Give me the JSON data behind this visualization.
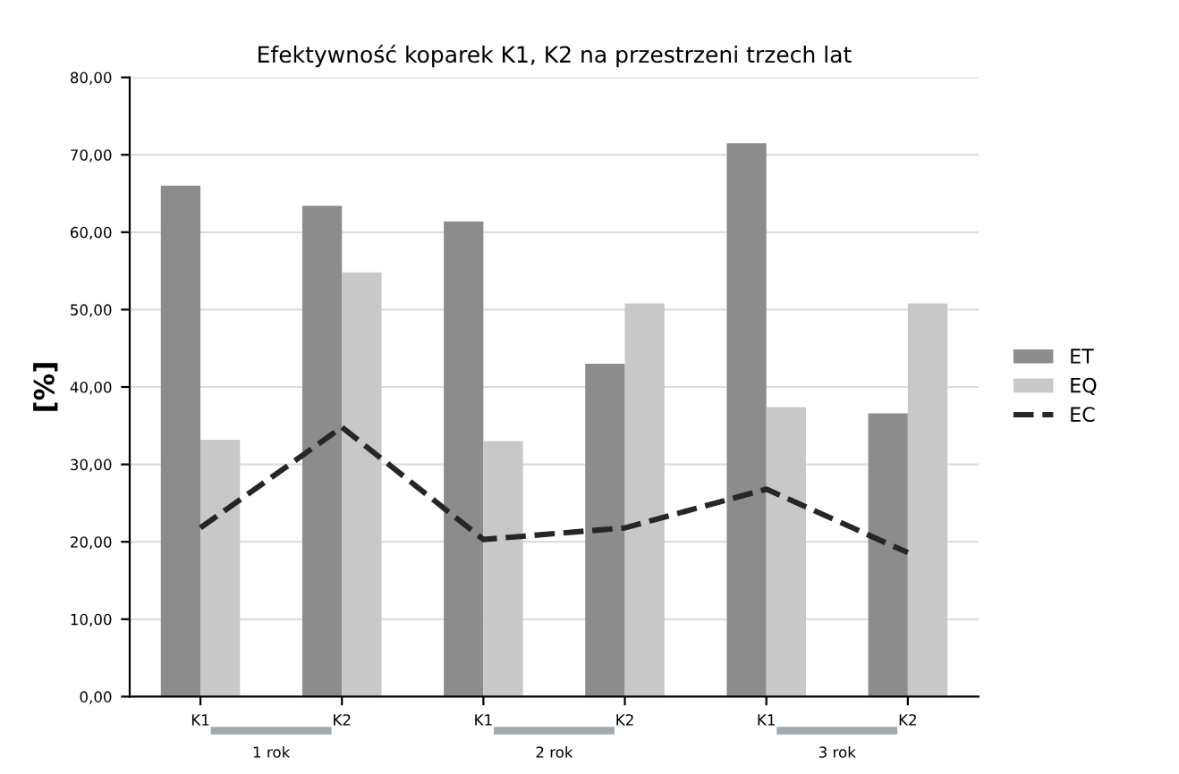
{
  "chart_data": {
    "type": "bar",
    "title": "Efektywność koparek K1, K2 na przestrzeni trzech lat",
    "ylabel": "[%]",
    "categories": [
      "K1",
      "K2",
      "K1",
      "K2",
      "K1",
      "K2"
    ],
    "series": [
      {
        "name": "ET",
        "color": "#8c8c8c",
        "values": [
          66.0,
          63.4,
          61.4,
          43.0,
          71.5,
          36.6
        ]
      },
      {
        "name": "EQ",
        "color": "#c8c8c8",
        "values": [
          33.2,
          54.8,
          33.0,
          50.8,
          37.4,
          50.8
        ]
      },
      {
        "name": "EC",
        "type": "line",
        "color": "#262626",
        "line_style": "dashed",
        "marker": "none",
        "values": [
          21.8,
          34.8,
          20.3,
          21.8,
          26.8,
          18.6
        ]
      }
    ],
    "ylim": [
      0,
      80
    ],
    "yticks": [
      {
        "value": 0,
        "label": "0,00"
      },
      {
        "value": 10,
        "label": "10,00"
      },
      {
        "value": 20,
        "label": "20,00"
      },
      {
        "value": 30,
        "label": "30,00"
      },
      {
        "value": 40,
        "label": "40,00"
      },
      {
        "value": 50,
        "label": "50,00"
      },
      {
        "value": 60,
        "label": "60,00"
      },
      {
        "value": 70,
        "label": "70,00"
      },
      {
        "value": 80,
        "label": "80,00"
      }
    ],
    "grid": "y",
    "legend": "right",
    "annotations": [
      "1 rok",
      "2 rok",
      "3 rok"
    ]
  }
}
